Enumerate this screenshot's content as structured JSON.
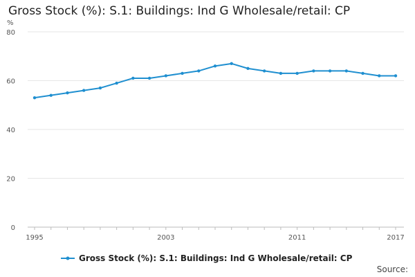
{
  "chart_data": {
    "type": "line",
    "title": "Gross Stock (%): S.1: Buildings: Ind G Wholesale/retail: CP",
    "ylabel": "%",
    "xlabel": "",
    "ylim": [
      0,
      80
    ],
    "yticks": [
      0,
      20,
      40,
      60,
      80
    ],
    "xticks": [
      1995,
      2003,
      2011,
      2017
    ],
    "x": [
      1995,
      1996,
      1997,
      1998,
      1999,
      2000,
      2001,
      2002,
      2003,
      2004,
      2005,
      2006,
      2007,
      2008,
      2009,
      2010,
      2011,
      2012,
      2013,
      2014,
      2015,
      2016,
      2017
    ],
    "series": [
      {
        "name": "Gross Stock (%): S.1: Buildings: Ind G Wholesale/retail: CP",
        "values": [
          53,
          54,
          55,
          56,
          57,
          59,
          61,
          61,
          62,
          63,
          64,
          66,
          67,
          65,
          64,
          63,
          63,
          64,
          64,
          64,
          63,
          62,
          62
        ],
        "color": "#1f8fd0"
      }
    ],
    "grid": true,
    "legend_position": "bottom",
    "source_label": "Source:"
  }
}
